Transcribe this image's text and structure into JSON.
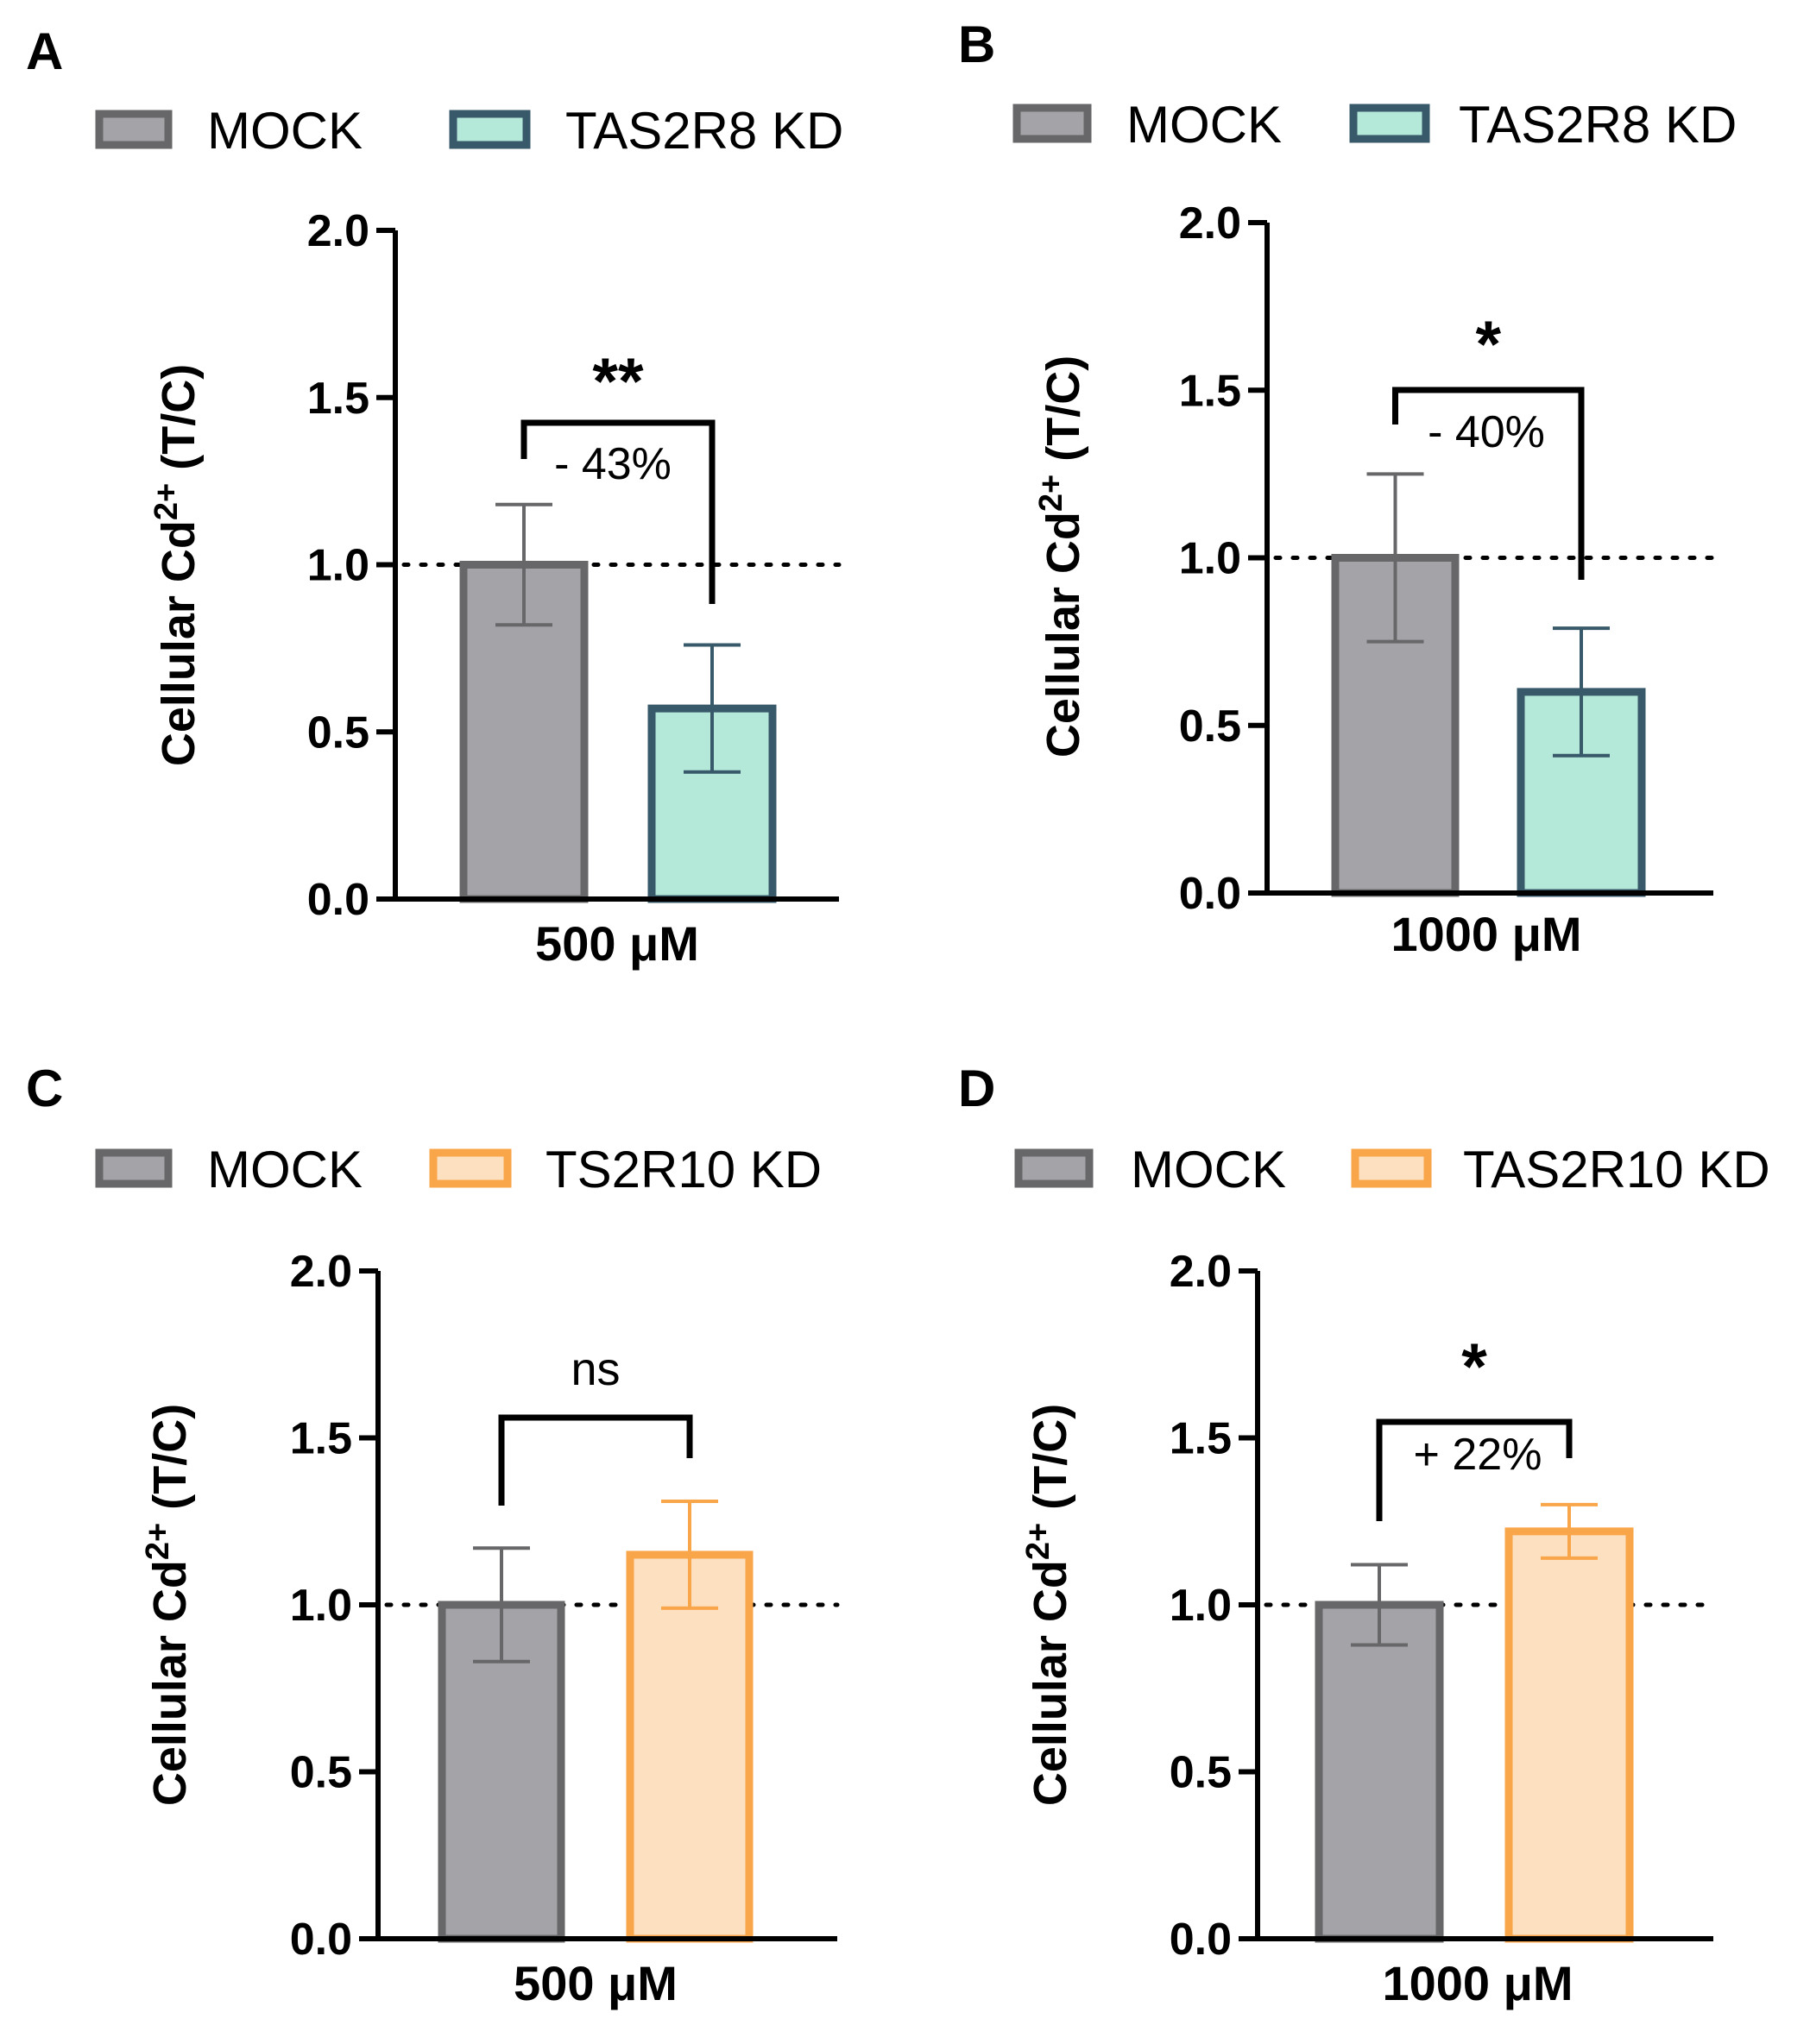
{
  "chart_data": [
    {
      "panel": "A",
      "type": "bar",
      "legend": [
        "MOCK",
        "TAS2R8 KD"
      ],
      "category": "500 μM",
      "ylabel_main": "Cellular Cd",
      "ylabel_sup": "2+",
      "ylabel_tail": " (T/C)",
      "ylim": [
        0,
        2.0
      ],
      "yticks": [
        "0.0",
        "0.5",
        "1.0",
        "1.5",
        "2.0"
      ],
      "reference_line": 1.0,
      "series": [
        {
          "name": "MOCK",
          "value": 1.0,
          "error": 0.18,
          "fill": "#a4a3a8",
          "stroke": "#676769"
        },
        {
          "name": "TAS2R8 KD",
          "value": 0.57,
          "error": 0.19,
          "fill": "#b4e8d8",
          "stroke": "#37596a"
        }
      ],
      "significance": "**",
      "change": "- 43%"
    },
    {
      "panel": "B",
      "type": "bar",
      "legend": [
        "MOCK",
        "TAS2R8 KD"
      ],
      "category": "1000 μM",
      "ylabel_main": "Cellular Cd",
      "ylabel_sup": "2+",
      "ylabel_tail": " (T/C)",
      "ylim": [
        0,
        2.0
      ],
      "yticks": [
        "0.0",
        "0.5",
        "1.0",
        "1.5",
        "2.0"
      ],
      "reference_line": 1.0,
      "series": [
        {
          "name": "MOCK",
          "value": 1.0,
          "error": 0.25,
          "fill": "#a4a3a8",
          "stroke": "#676769"
        },
        {
          "name": "TAS2R8 KD",
          "value": 0.6,
          "error": 0.19,
          "fill": "#b4e8d8",
          "stroke": "#37596a"
        }
      ],
      "significance": "*",
      "change": "- 40%"
    },
    {
      "panel": "C",
      "type": "bar",
      "legend": [
        "MOCK",
        "TS2R10 KD"
      ],
      "category": "500 μM",
      "ylabel_main": "Cellular Cd",
      "ylabel_sup": "2+",
      "ylabel_tail": " (T/C)",
      "ylim": [
        0,
        2.0
      ],
      "yticks": [
        "0.0",
        "0.5",
        "1.0",
        "1.5",
        "2.0"
      ],
      "reference_line": 1.0,
      "series": [
        {
          "name": "MOCK",
          "value": 1.0,
          "error": 0.17,
          "fill": "#a4a3a8",
          "stroke": "#676769"
        },
        {
          "name": "TS2R10 KD",
          "value": 1.15,
          "error": 0.16,
          "fill": "#fde0c0",
          "stroke": "#f9a54a"
        }
      ],
      "significance": "ns",
      "change": ""
    },
    {
      "panel": "D",
      "type": "bar",
      "legend": [
        "MOCK",
        "TAS2R10 KD"
      ],
      "category": "1000 μM",
      "ylabel_main": "Cellular Cd",
      "ylabel_sup": "2+",
      "ylabel_tail": " (T/C)",
      "ylim": [
        0,
        2.0
      ],
      "yticks": [
        "0.0",
        "0.5",
        "1.0",
        "1.5",
        "2.0"
      ],
      "reference_line": 1.0,
      "series": [
        {
          "name": "MOCK",
          "value": 1.0,
          "error": 0.12,
          "fill": "#a4a3a8",
          "stroke": "#676769"
        },
        {
          "name": "TAS2R10 KD",
          "value": 1.22,
          "error": 0.08,
          "fill": "#fde0c0",
          "stroke": "#f9a54a"
        }
      ],
      "significance": "*",
      "change": "+ 22%"
    }
  ]
}
